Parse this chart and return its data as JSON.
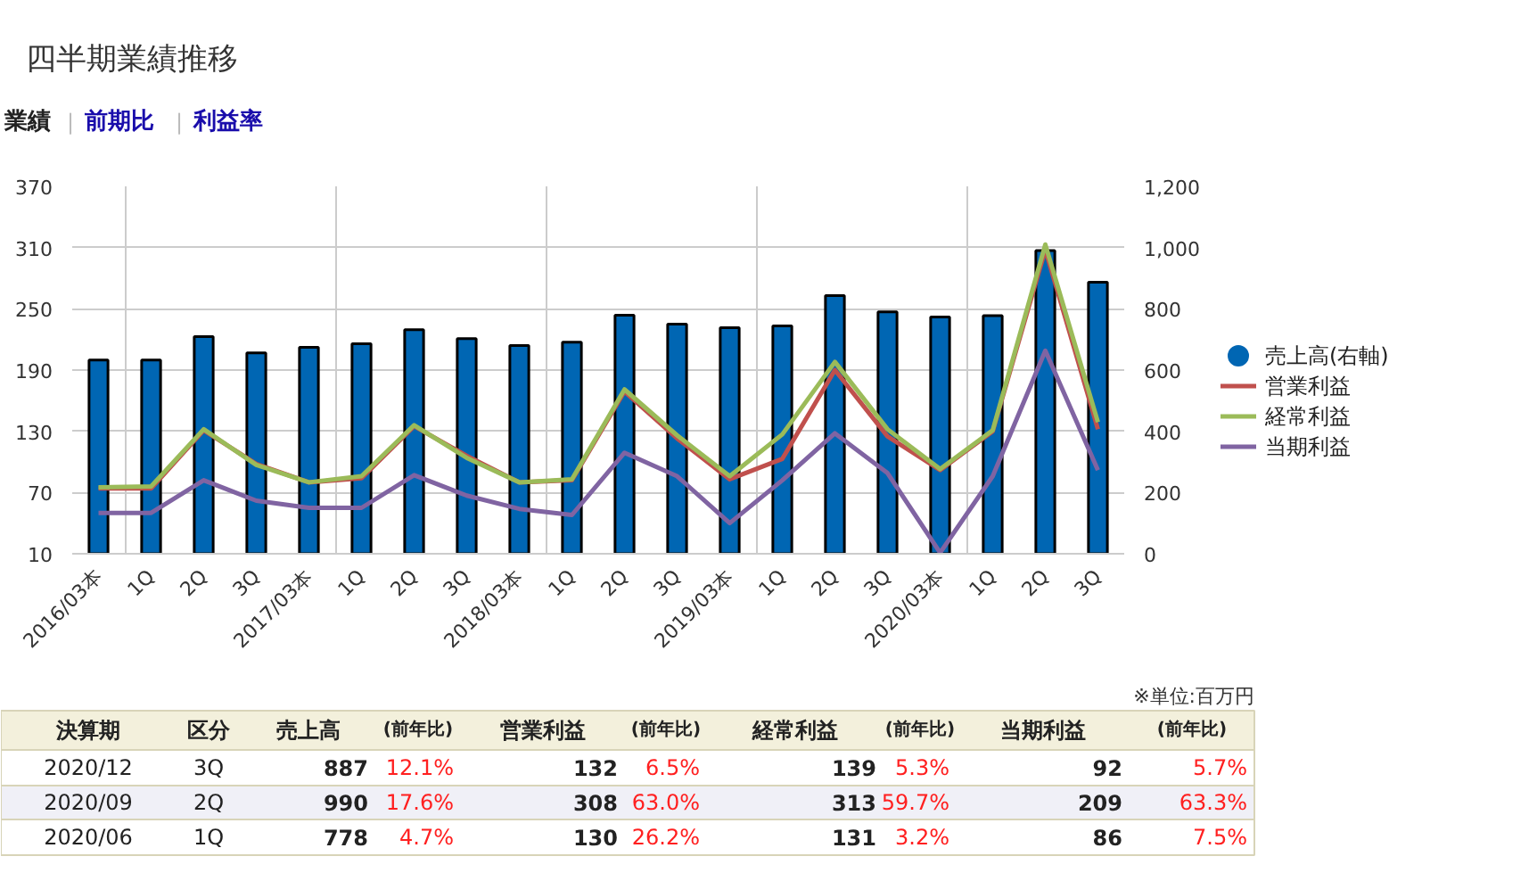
{
  "chart_data": {
    "type": "line",
    "title": "四半期業績推移",
    "categories": [
      "2016/03本",
      "1Q",
      "2Q",
      "3Q",
      "2017/03本",
      "1Q",
      "2Q",
      "3Q",
      "2018/03本",
      "1Q",
      "2Q",
      "3Q",
      "2019/03本",
      "1Q",
      "2Q",
      "3Q",
      "2020/03本",
      "1Q",
      "2Q",
      "3Q"
    ],
    "series": [
      {
        "name": "売上高(右軸)",
        "type": "bar",
        "axis": "y2",
        "color": "#0066b3",
        "values": [
          633,
          633,
          709,
          656,
          674,
          686,
          732,
          703,
          680,
          691,
          779,
          750,
          738,
          744,
          843,
          790,
          773,
          778,
          990,
          887
        ]
      },
      {
        "name": "営業利益",
        "color": "#c0504d",
        "values": [
          74,
          74,
          131,
          98,
          80,
          84,
          135,
          106,
          80,
          82,
          169,
          123,
          83,
          103,
          190,
          125,
          92,
          130,
          308,
          132
        ]
      },
      {
        "name": "経常利益",
        "color": "#9bbb59",
        "values": [
          75,
          76,
          132,
          97,
          80,
          86,
          136,
          104,
          80,
          83,
          171,
          126,
          86,
          127,
          198,
          132,
          93,
          131,
          313,
          139
        ]
      },
      {
        "name": "当期利益",
        "color": "#8064a2",
        "values": [
          50,
          50,
          82,
          62,
          55,
          55,
          87,
          67,
          54,
          48,
          109,
          86,
          40,
          82,
          128,
          89,
          11,
          86,
          209,
          92
        ]
      }
    ],
    "ylim": [
      10,
      370
    ],
    "yticks": [
      10,
      70,
      130,
      190,
      250,
      310,
      370
    ],
    "y2lim": [
      0,
      1200
    ],
    "y2ticks": [
      0,
      200,
      400,
      600,
      800,
      {
        "value": 1000,
        "label": "1,000"
      },
      {
        "value": 1200,
        "label": "1,200"
      }
    ],
    "grid": true,
    "legend": "right",
    "marker": "none",
    "line_style": "solid",
    "annotations": [
      "業績",
      "|",
      "前期比",
      "|",
      "利益率",
      "※単位:百万円",
      "決算期",
      "区分",
      "売上高",
      "(前年比)",
      "営業利益",
      "(前年比)",
      "経常利益",
      "(前年比)",
      "当期利益",
      "(前年比)",
      "2020/12",
      "3Q",
      "887",
      "12.1%",
      "132",
      "6.5%",
      "139",
      "5.3%",
      "92",
      "5.7%",
      "2020/09",
      "2Q",
      "990",
      "17.6%",
      "308",
      "63.0%",
      "313",
      "59.7%",
      "209",
      "63.3%",
      "2020/06",
      "1Q",
      "778",
      "4.7%",
      "130",
      "26.2%",
      "131",
      "3.2%",
      "86",
      "7.5%"
    ]
  }
}
